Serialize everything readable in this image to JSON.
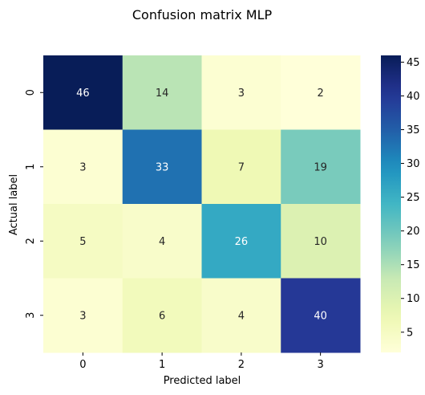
{
  "chart_data": {
    "type": "heatmap",
    "title": "Confusion matrix MLP",
    "xlabel": "Predicted label",
    "ylabel": "Actual label",
    "x_categories": [
      "0",
      "1",
      "2",
      "3"
    ],
    "y_categories": [
      "0",
      "1",
      "2",
      "3"
    ],
    "values": [
      [
        46,
        14,
        3,
        2
      ],
      [
        3,
        33,
        7,
        19
      ],
      [
        5,
        4,
        26,
        10
      ],
      [
        3,
        6,
        4,
        40
      ]
    ],
    "colormap": "YlGnBu",
    "colorbar": {
      "range": [
        2,
        46
      ],
      "ticks": [
        5,
        10,
        15,
        20,
        25,
        30,
        35,
        40,
        45
      ]
    }
  }
}
